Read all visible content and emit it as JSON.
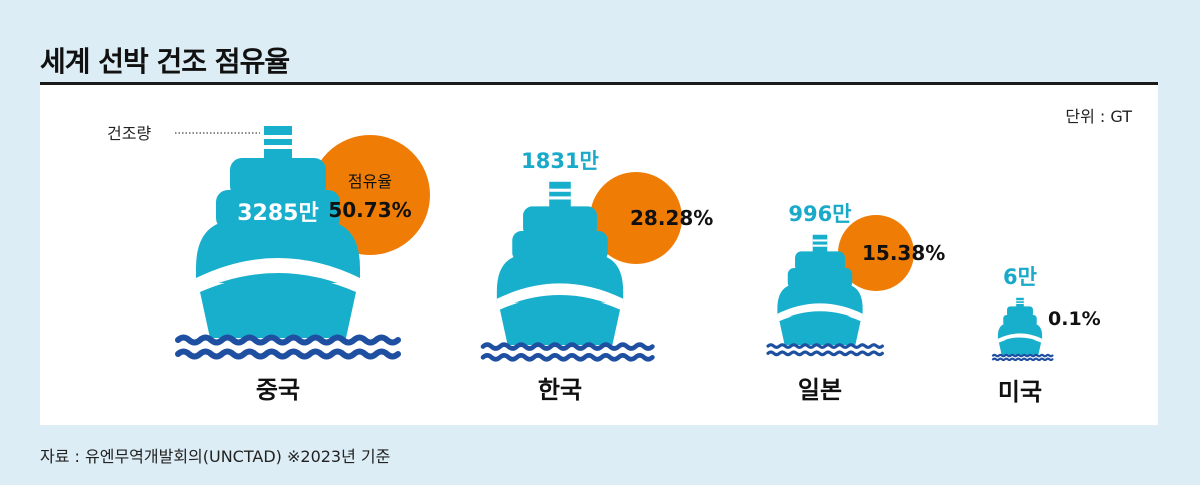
{
  "title": "세계 선박 건조 점유율",
  "unit_label": "단위 : GT",
  "source": "자료 : 유엔무역개발회의(UNCTAD) ※2023년 기준",
  "legend": {
    "volume_label": "건조량",
    "share_label": "점유율"
  },
  "colors": {
    "ship": "#18afcc",
    "circle": "#ef7d05",
    "wave": "#1e4fa1",
    "volume_text": "#19a9c9",
    "background": "#ddedf5"
  },
  "chart_data": {
    "type": "bar",
    "title": "세계 선박 건조 점유율",
    "unit": "GT",
    "categories": [
      "중국",
      "한국",
      "일본",
      "미국"
    ],
    "series": [
      {
        "name": "건조량",
        "values": [
          32850000,
          18310000,
          9960000,
          60000
        ],
        "labels": [
          "3285만",
          "1831만",
          "996만",
          "6만"
        ]
      },
      {
        "name": "점유율",
        "values": [
          50.73,
          28.28,
          15.38,
          0.1
        ],
        "labels": [
          "50.73%",
          "28.28%",
          "15.38%",
          "0.1%"
        ]
      }
    ]
  }
}
